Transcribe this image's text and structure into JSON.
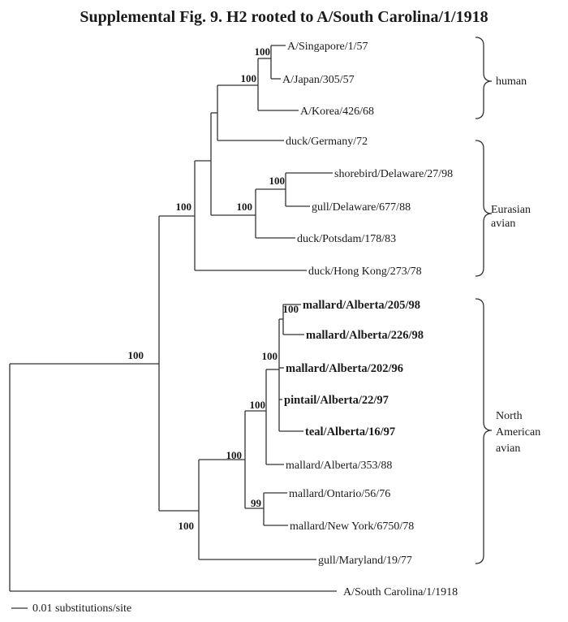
{
  "title": "Supplemental  Fig. 9.   H2 rooted to A/South Carolina/1/1918",
  "leaves": [
    {
      "id": "L1",
      "label": "A/Singapore/1/57",
      "bold": false
    },
    {
      "id": "L2",
      "label": "A/Japan/305/57",
      "bold": false
    },
    {
      "id": "L3",
      "label": "A/Korea/426/68",
      "bold": false
    },
    {
      "id": "L4",
      "label": "duck/Germany/72",
      "bold": false
    },
    {
      "id": "L5",
      "label": "shorebird/Delaware/27/98",
      "bold": false
    },
    {
      "id": "L6",
      "label": "gull/Delaware/677/88",
      "bold": false
    },
    {
      "id": "L7",
      "label": "duck/Potsdam/178/83",
      "bold": false
    },
    {
      "id": "L8",
      "label": "duck/Hong Kong/273/78",
      "bold": false
    },
    {
      "id": "L9",
      "label": "mallard/Alberta/205/98",
      "bold": true
    },
    {
      "id": "L10",
      "label": "mallard/Alberta/226/98",
      "bold": true
    },
    {
      "id": "L11",
      "label": "mallard/Alberta/202/96",
      "bold": true
    },
    {
      "id": "L12",
      "label": "pintail/Alberta/22/97",
      "bold": true
    },
    {
      "id": "L13",
      "label": "teal/Alberta/16/97",
      "bold": true
    },
    {
      "id": "L14",
      "label": "mallard/Alberta/353/88",
      "bold": false
    },
    {
      "id": "L15",
      "label": "mallard/Ontario/56/76",
      "bold": false
    },
    {
      "id": "L16",
      "label": "mallard/New York/6750/78",
      "bold": false
    },
    {
      "id": "L17",
      "label": "gull/Maryland/19/77",
      "bold": false
    },
    {
      "id": "L18",
      "label": "A/South Carolina/1/1918",
      "bold": false
    }
  ],
  "bootstrap": [
    {
      "node": "singapore-japan",
      "value": "100"
    },
    {
      "node": "human",
      "value": "100"
    },
    {
      "node": "shorebird-gull",
      "value": "100"
    },
    {
      "node": "eurasian-inner",
      "value": "100"
    },
    {
      "node": "eurasian",
      "value": "100"
    },
    {
      "node": "root-ingroup",
      "value": "100"
    },
    {
      "node": "alberta-205-226",
      "value": "100"
    },
    {
      "node": "alberta-recent",
      "value": "100"
    },
    {
      "node": "alberta-all",
      "value": "100"
    },
    {
      "node": "north-american-inner",
      "value": "100"
    },
    {
      "node": "ontario-newyork",
      "value": "99"
    },
    {
      "node": "north-american",
      "value": "100"
    }
  ],
  "groups": [
    {
      "id": "human",
      "lines": [
        "human"
      ]
    },
    {
      "id": "eurasian",
      "lines": [
        "Eurasian",
        "avian"
      ]
    },
    {
      "id": "north-american",
      "lines": [
        "North",
        "American",
        "avian"
      ]
    }
  ],
  "scale_label": "0.01 substitutions/site"
}
